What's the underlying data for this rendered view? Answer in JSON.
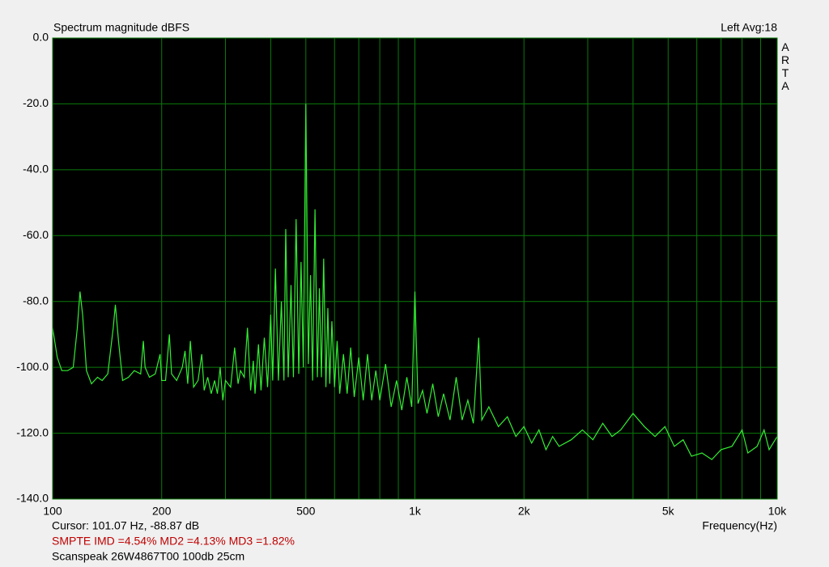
{
  "chart_data": {
    "type": "line",
    "title": "Spectrum magnitude dBFS",
    "channel": "Left  Avg:18",
    "logo": "ARTA",
    "xlabel": "Frequency(Hz)",
    "cursor": "Cursor: 101.07 Hz, -88.87 dB",
    "imd": "SMPTE IMD =4.54%  MD2 =4.13%  MD3 =1.82%",
    "note": "Scanspeak 26W4867T00 100db 25cm",
    "xscale": "log",
    "grid": true,
    "xlim": [
      100,
      10000
    ],
    "ylim": [
      -140,
      0
    ],
    "xticks": [
      100,
      200,
      500,
      {
        "value": 1000,
        "label": "1k"
      },
      {
        "value": 2000,
        "label": "2k"
      },
      {
        "value": 5000,
        "label": "5k"
      },
      {
        "value": 10000,
        "label": "10k"
      }
    ],
    "xminor": [
      300,
      400,
      600,
      700,
      800,
      900,
      3000,
      4000,
      6000,
      7000,
      8000,
      9000
    ],
    "yticks": [
      {
        "value": 0,
        "label": "0.0"
      },
      {
        "value": -20,
        "label": "-20.0"
      },
      {
        "value": -40,
        "label": "-40.0"
      },
      {
        "value": -60,
        "label": "-60.0"
      },
      {
        "value": -80,
        "label": "-80.0"
      },
      {
        "value": -100,
        "label": "-100.0"
      },
      {
        "value": -120,
        "label": "-120.0"
      },
      {
        "value": -140,
        "label": "-140.0"
      }
    ],
    "x": [
      100,
      103,
      106,
      110,
      114,
      117,
      119,
      121,
      124,
      128,
      133,
      137,
      142,
      147,
      149,
      152,
      156,
      162,
      168,
      175,
      178,
      180,
      185,
      192,
      198,
      200,
      205,
      210,
      213,
      220,
      228,
      232,
      236,
      240,
      245,
      252,
      258,
      262,
      268,
      274,
      280,
      285,
      290,
      295,
      300,
      310,
      318,
      325,
      330,
      338,
      345,
      352,
      358,
      362,
      370,
      376,
      384,
      392,
      400,
      405,
      412,
      420,
      428,
      435,
      440,
      447,
      455,
      462,
      470,
      478,
      485,
      492,
      500,
      508,
      515,
      522,
      530,
      538,
      545,
      552,
      560,
      568,
      575,
      582,
      590,
      600,
      610,
      620,
      635,
      650,
      665,
      680,
      700,
      720,
      740,
      760,
      780,
      800,
      830,
      860,
      890,
      920,
      950,
      980,
      1000,
      1020,
      1050,
      1080,
      1120,
      1160,
      1200,
      1250,
      1300,
      1350,
      1400,
      1450,
      1500,
      1530,
      1600,
      1700,
      1800,
      1900,
      2000,
      2100,
      2200,
      2300,
      2400,
      2500,
      2700,
      2900,
      3100,
      3300,
      3500,
      3700,
      4000,
      4300,
      4600,
      4900,
      5200,
      5500,
      5800,
      6200,
      6600,
      7000,
      7500,
      8000,
      8300,
      8800,
      9200,
      9500,
      10000
    ],
    "series": [
      {
        "color": "#33ee33",
        "values": [
          -88,
          -97,
          -101,
          -101,
          -100,
          -88,
          -77,
          -84,
          -101,
          -105,
          -103,
          -104,
          -102,
          -88,
          -81,
          -92,
          -104,
          -103,
          -101,
          -102,
          -92,
          -100,
          -103,
          -102,
          -96,
          -104,
          -104,
          -90,
          -102,
          -104,
          -100,
          -95,
          -105,
          -92,
          -106,
          -104,
          -96,
          -107,
          -103,
          -108,
          -104,
          -108,
          -100,
          -110,
          -104,
          -106,
          -94,
          -105,
          -101,
          -103,
          -88,
          -107,
          -98,
          -108,
          -93,
          -107,
          -91,
          -106,
          -84,
          -104,
          -70,
          -104,
          -80,
          -104,
          -58,
          -103,
          -75,
          -103,
          -55,
          -102,
          -68,
          -100,
          -20,
          -99,
          -72,
          -104,
          -52,
          -103,
          -76,
          -103,
          -67,
          -106,
          -82,
          -105,
          -86,
          -106,
          -92,
          -108,
          -96,
          -108,
          -94,
          -109,
          -97,
          -110,
          -96,
          -110,
          -101,
          -110,
          -99,
          -112,
          -104,
          -113,
          -103,
          -112,
          -77,
          -111,
          -107,
          -114,
          -105,
          -115,
          -108,
          -116,
          -103,
          -116,
          -110,
          -117,
          -91,
          -116,
          -112,
          -118,
          -115,
          -121,
          -118,
          -123,
          -119,
          -125,
          -121,
          -124,
          -122,
          -119,
          -122,
          -117,
          -121,
          -119,
          -114,
          -118,
          -121,
          -118,
          -124,
          -122,
          -127,
          -126,
          -128,
          -125,
          -124,
          -119,
          -126,
          -124,
          -119,
          -125,
          -121
        ]
      }
    ]
  }
}
